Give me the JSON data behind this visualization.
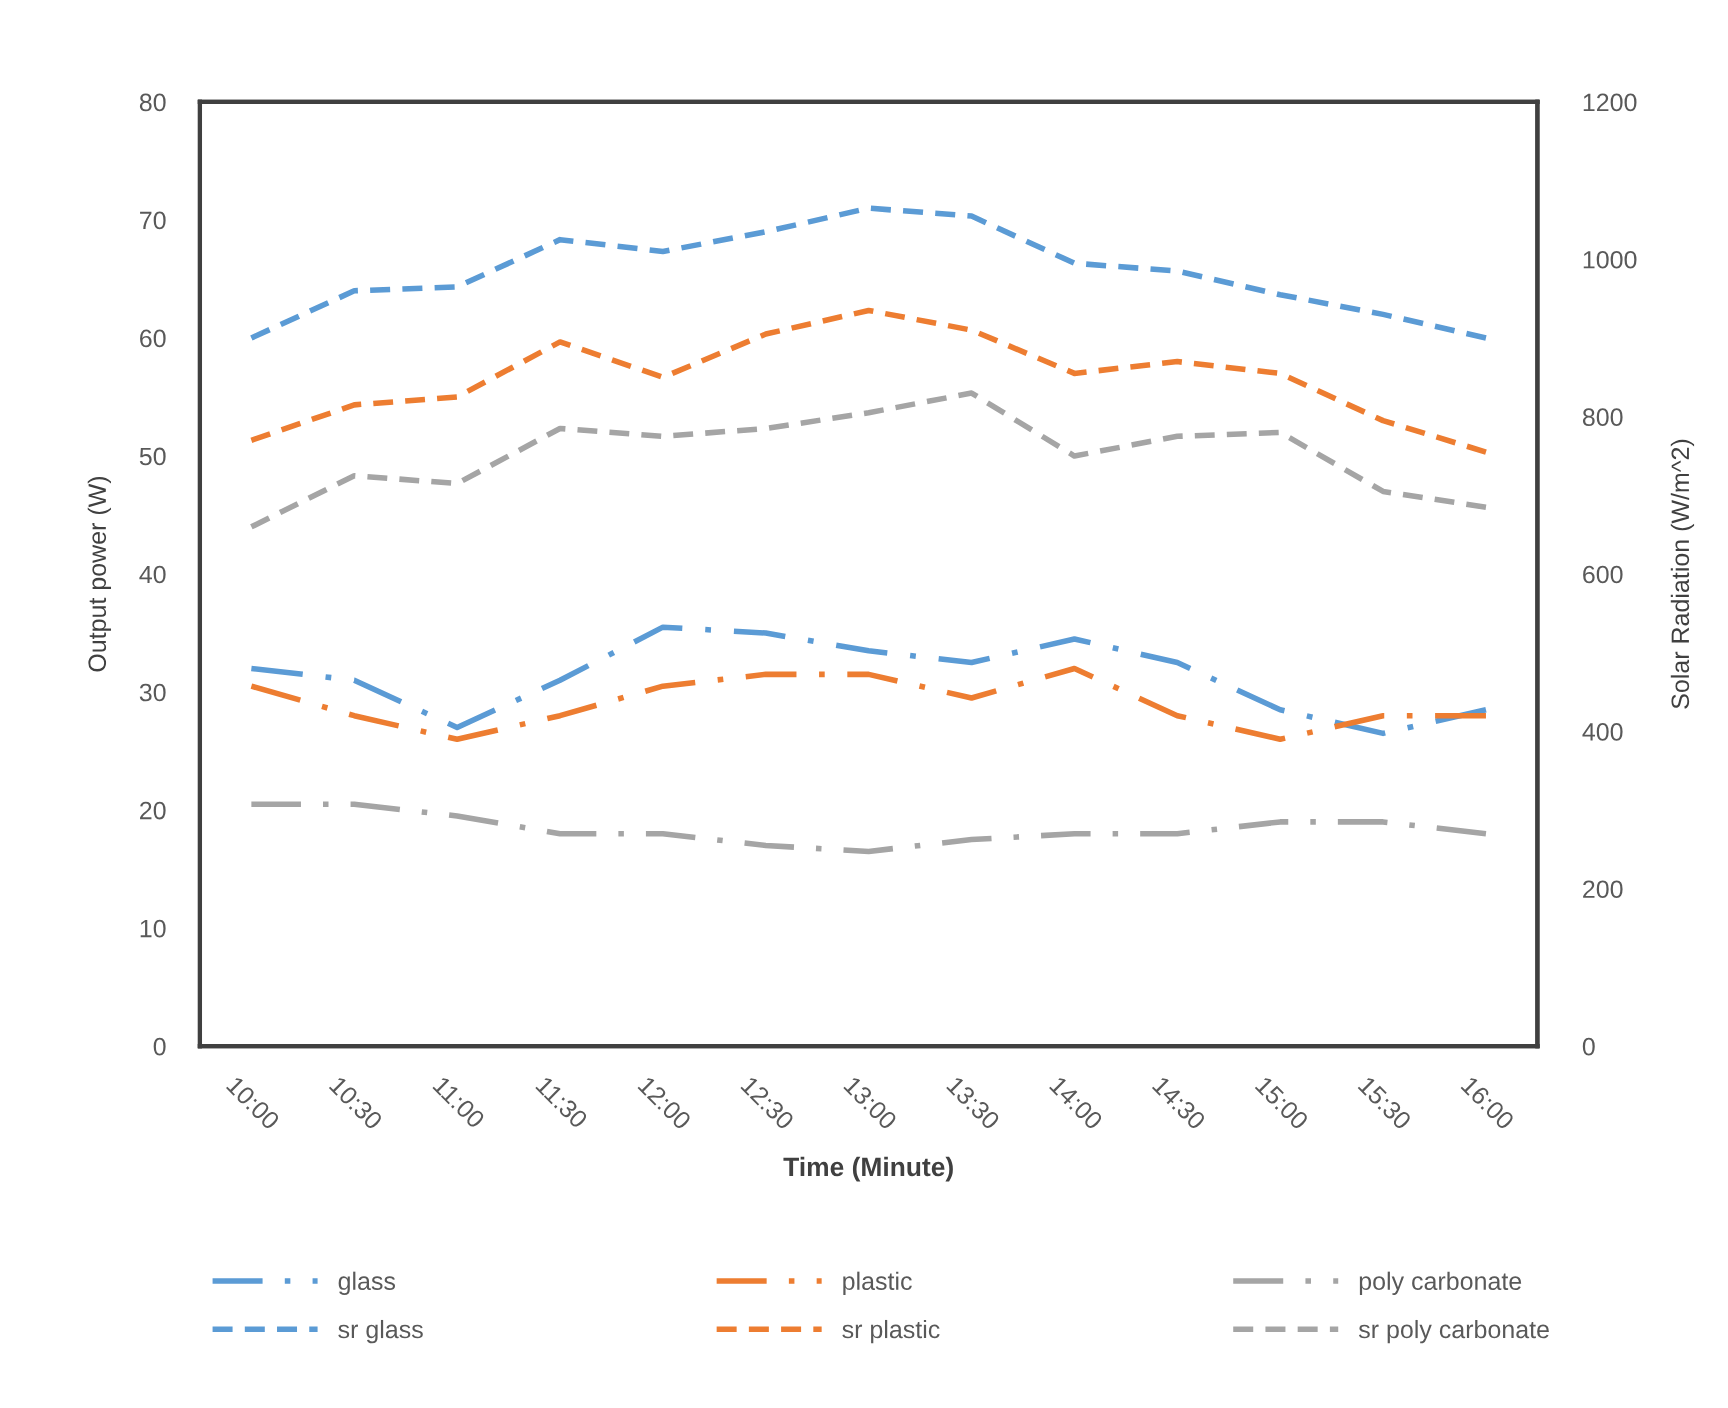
{
  "chart_data": {
    "type": "line",
    "xlabel": "Time (Minute)",
    "ylabel": "Output power (W)",
    "y2label": "Solar Radiation (W/m^2)",
    "categories": [
      "10:00",
      "10:30",
      "11:00",
      "11:30",
      "12:00",
      "12:30",
      "13:00",
      "13:30",
      "14:00",
      "14:30",
      "15:00",
      "15:30",
      "16:00"
    ],
    "ylim": [
      0,
      80
    ],
    "yticks": [
      0,
      10,
      20,
      30,
      40,
      50,
      60,
      70,
      80
    ],
    "y2lim": [
      0,
      1200
    ],
    "y2ticks": [
      0,
      200,
      400,
      600,
      800,
      1000,
      1200
    ],
    "legend": "bottom",
    "series": [
      {
        "name": "glass",
        "color": "#5b9bd5",
        "line_style": "dashdot",
        "values": [
          32,
          31,
          27,
          31,
          35.5,
          35,
          33.5,
          32.5,
          34.5,
          32.5,
          28.5,
          26.5,
          28.5
        ]
      },
      {
        "name": "plastic",
        "color": "#ed7d31",
        "line_style": "dashdot",
        "values": [
          30.5,
          28,
          26,
          28,
          30.5,
          31.5,
          31.5,
          29.5,
          32,
          28,
          26,
          28,
          28
        ]
      },
      {
        "name": "poly carbonate",
        "color": "#a5a5a5",
        "line_style": "dashdot",
        "values": [
          20.5,
          20.5,
          19.5,
          18,
          18,
          17,
          16.5,
          17.5,
          18,
          18,
          19,
          19,
          18
        ]
      },
      {
        "name": "sr glass",
        "color": "#5b9bd5",
        "line_style": "dashed",
        "axis": "y2",
        "values": [
          900,
          960,
          965,
          1025,
          1010,
          1035,
          1065,
          1055,
          995,
          985,
          955,
          930,
          900
        ]
      },
      {
        "name": "sr plastic",
        "color": "#ed7d31",
        "line_style": "dashed",
        "axis": "y2",
        "values": [
          770,
          815,
          825,
          895,
          850,
          905,
          935,
          910,
          855,
          870,
          855,
          795,
          755
        ]
      },
      {
        "name": "sr poly carbonate",
        "color": "#a5a5a5",
        "line_style": "dashed",
        "axis": "y2",
        "values": [
          660,
          725,
          715,
          785,
          775,
          785,
          805,
          830,
          750,
          775,
          780,
          705,
          685
        ]
      }
    ]
  }
}
